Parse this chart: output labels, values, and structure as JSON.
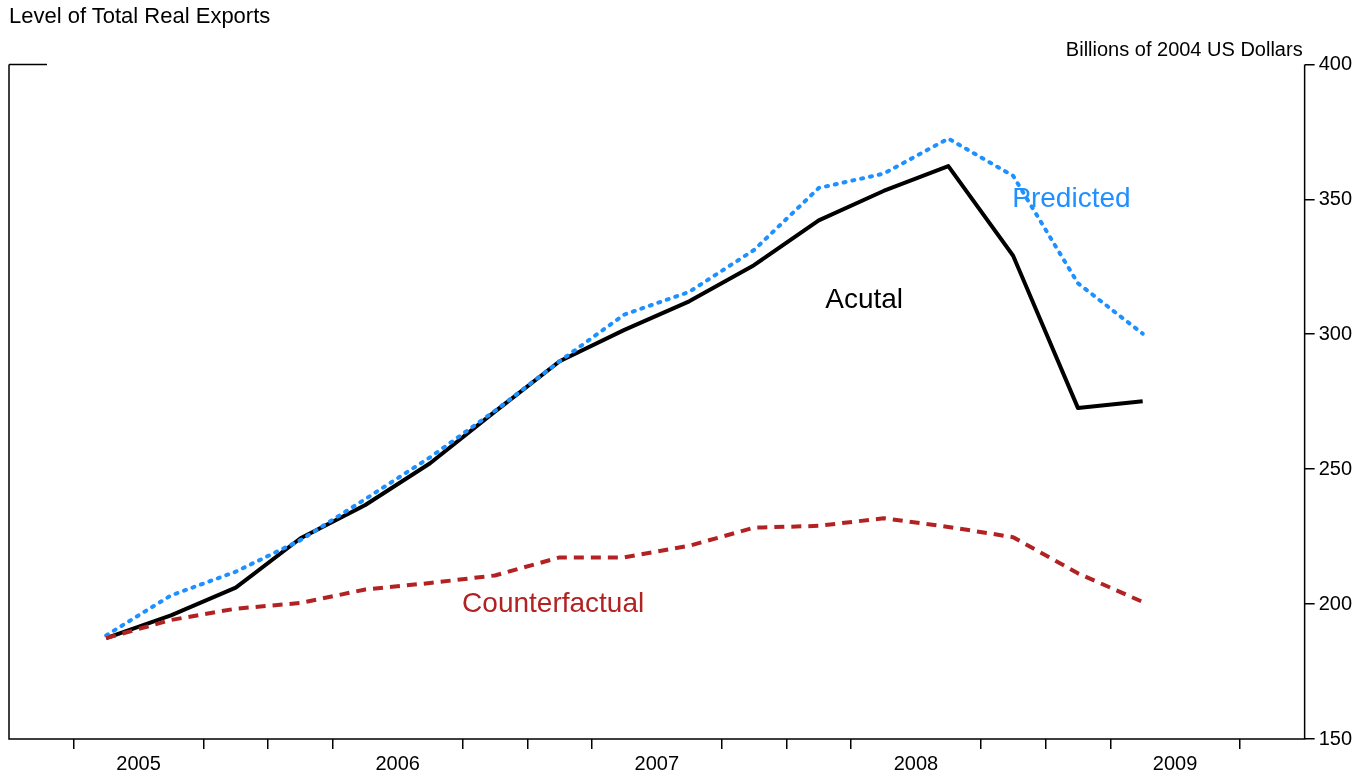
{
  "chart_data": {
    "type": "line",
    "title": "Level of Total Real Exports",
    "ylabel": "Billions of 2004 US Dollars",
    "x": [
      2005.375,
      2005.625,
      2005.875,
      2006.125,
      2006.375,
      2006.625,
      2006.875,
      2007.125,
      2007.375,
      2007.625,
      2007.875,
      2008.125,
      2008.375,
      2008.625,
      2008.875,
      2009.125,
      2009.375
    ],
    "series": [
      {
        "name": "Acutal",
        "color": "#000000",
        "line_style": "solid",
        "values": [
          187.4,
          195.8,
          206.1,
          224.4,
          236.7,
          252.2,
          271.3,
          290.0,
          301.6,
          312.2,
          325.6,
          342.2,
          353.1,
          362.3,
          329.1,
          272.7,
          275.2
        ]
      },
      {
        "name": "Predicted",
        "color": "#1e90ff",
        "line_style": "dotted",
        "values": [
          188.4,
          203.2,
          212.0,
          223.7,
          238.9,
          254.4,
          271.6,
          290.0,
          307.3,
          315.7,
          331.2,
          354.2,
          359.5,
          372.5,
          358.7,
          318.9,
          300.2
        ]
      },
      {
        "name": "Counterfactual",
        "color": "#b22222",
        "line_style": "dashed",
        "values": [
          187.4,
          194.1,
          198.3,
          200.4,
          205.4,
          207.8,
          210.6,
          217.3,
          217.3,
          221.6,
          228.3,
          229.0,
          231.8,
          228.6,
          224.8,
          211.4,
          200.8
        ]
      }
    ],
    "xlim": [
      2005,
      2010
    ],
    "xticks": [
      {
        "value": 2005.25,
        "label": null
      },
      {
        "value": 2005.5,
        "label": "2005"
      },
      {
        "value": 2005.75,
        "label": null
      },
      {
        "value": 2006,
        "label": null
      },
      {
        "value": 2006.25,
        "label": null
      },
      {
        "value": 2006.5,
        "label": "2006"
      },
      {
        "value": 2006.75,
        "label": null
      },
      {
        "value": 2007,
        "label": null
      },
      {
        "value": 2007.25,
        "label": null
      },
      {
        "value": 2007.5,
        "label": "2007"
      },
      {
        "value": 2007.75,
        "label": null
      },
      {
        "value": 2008,
        "label": null
      },
      {
        "value": 2008.25,
        "label": null
      },
      {
        "value": 2008.5,
        "label": "2008"
      },
      {
        "value": 2008.75,
        "label": null
      },
      {
        "value": 2009,
        "label": null
      },
      {
        "value": 2009.25,
        "label": null
      },
      {
        "value": 2009.5,
        "label": "2009"
      },
      {
        "value": 2009.75,
        "label": null
      }
    ],
    "ylim": [
      150,
      400
    ],
    "yticks": [
      150,
      200,
      250,
      300,
      350,
      400
    ],
    "grid": false,
    "legend": false,
    "marker": "none"
  }
}
